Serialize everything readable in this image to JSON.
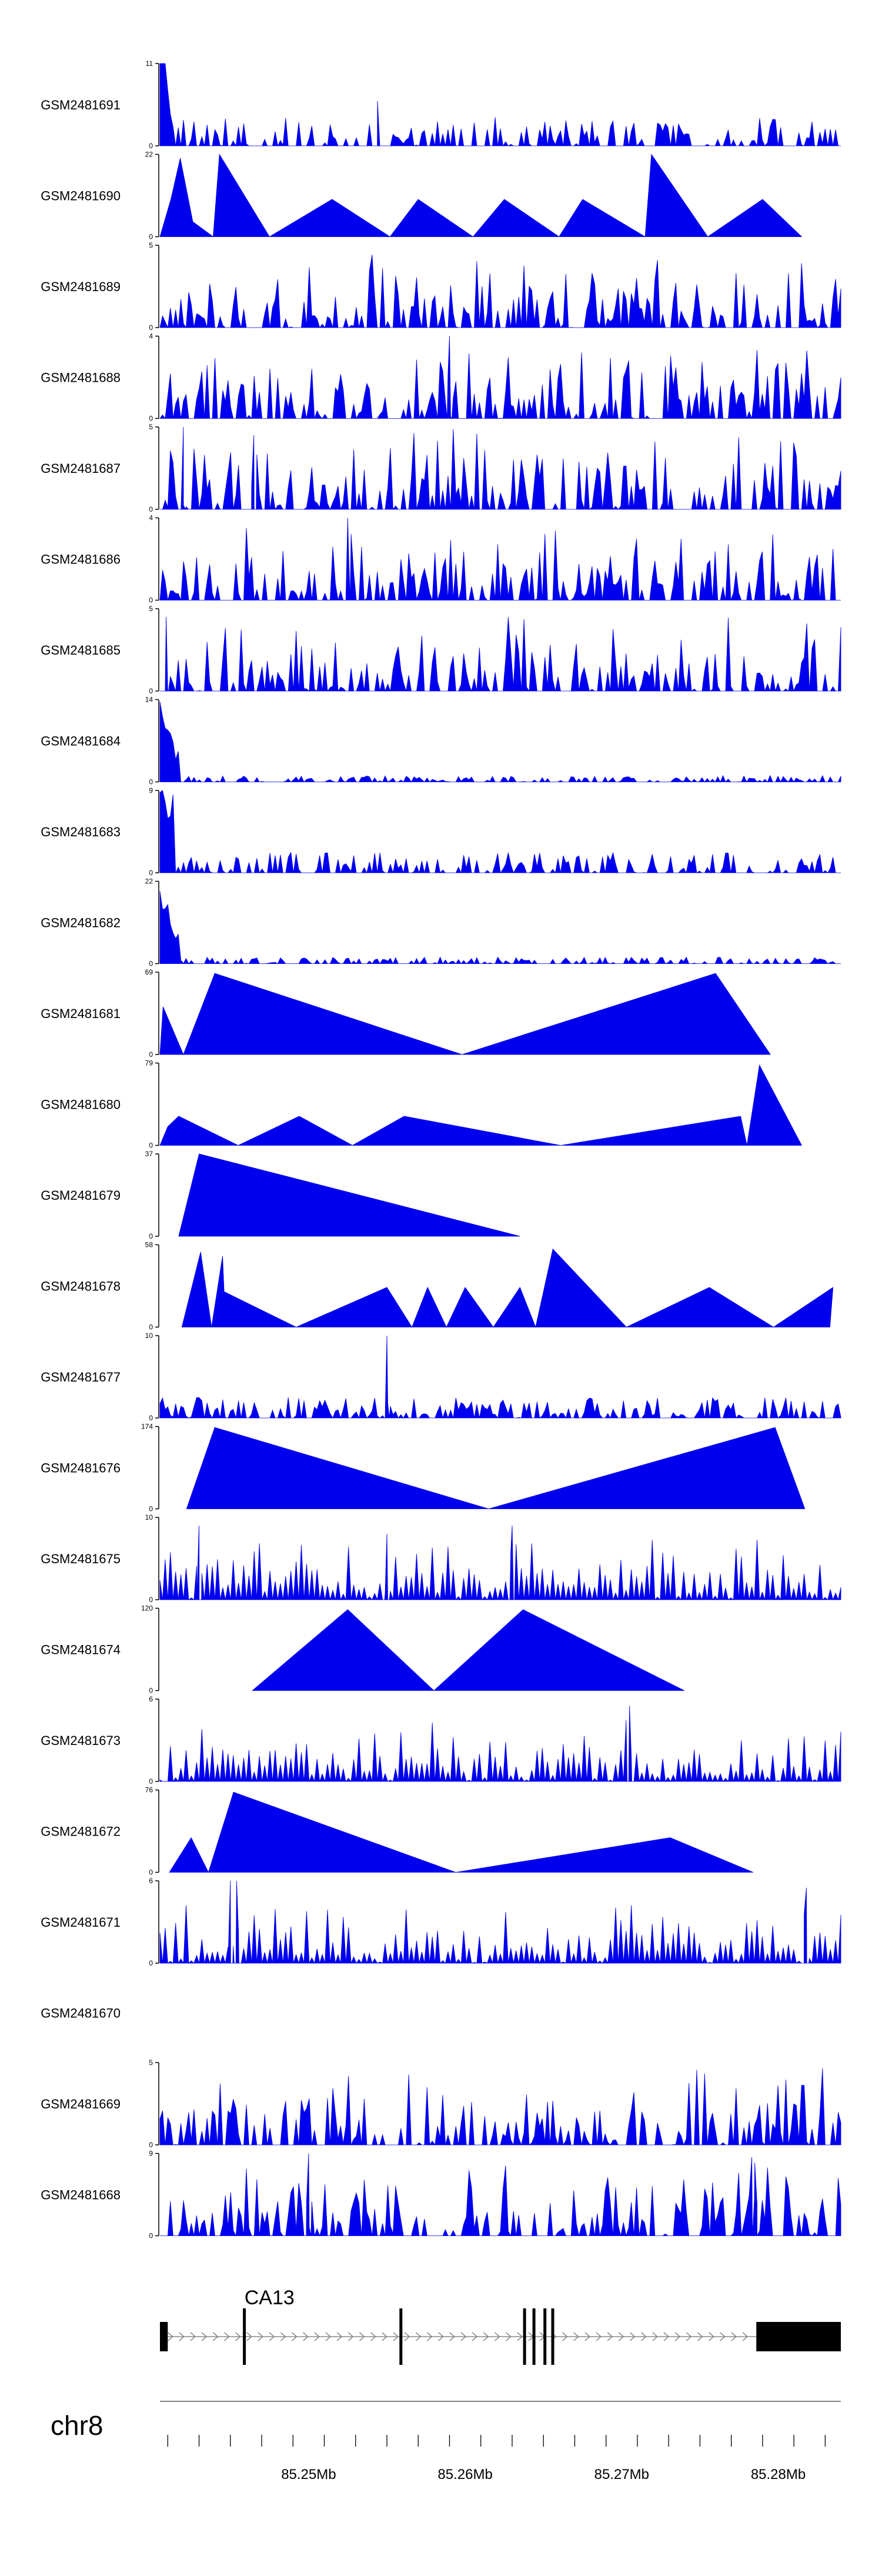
{
  "colors": {
    "signal": "#0000ee",
    "axis": "#000000",
    "gene": "#000000",
    "intron_arrow": "#888888",
    "ideogram_line": "#555555"
  },
  "chart_data": {
    "type": "area",
    "title": "",
    "genome_range": {
      "chromosome": "chr8",
      "start": 85240500,
      "end": 85284000
    },
    "tracks": [
      {
        "name": "GSM2481691",
        "ymax": 11,
        "pattern": "noisy_decay",
        "seed": 3,
        "peaks": [
          [
            85254400,
            6
          ]
        ]
      },
      {
        "name": "GSM2481690",
        "ymax": 22,
        "pattern": "triangles",
        "seed": 5,
        "points": [
          [
            85240500,
            0
          ],
          [
            85241200,
            10
          ],
          [
            85241800,
            21
          ],
          [
            85242600,
            4
          ],
          [
            85243900,
            0
          ],
          [
            85244300,
            22
          ],
          [
            85247500,
            0
          ],
          [
            85251500,
            10
          ],
          [
            85255200,
            0
          ],
          [
            85257000,
            10
          ],
          [
            85260500,
            0
          ],
          [
            85262500,
            10
          ],
          [
            85266000,
            0
          ],
          [
            85267500,
            10
          ],
          [
            85271500,
            0
          ],
          [
            85271900,
            22
          ],
          [
            85275500,
            0
          ],
          [
            85279000,
            10
          ],
          [
            85281500,
            0
          ]
        ]
      },
      {
        "name": "GSM2481689",
        "ymax": 5,
        "pattern": "noisy",
        "seed": 7
      },
      {
        "name": "GSM2481688",
        "ymax": 4,
        "pattern": "noisy",
        "seed": 11,
        "peaks": [
          [
            85259000,
            4
          ]
        ]
      },
      {
        "name": "GSM2481687",
        "ymax": 5,
        "pattern": "noisy",
        "seed": 13,
        "peaks": [
          [
            85242000,
            5
          ],
          [
            85246500,
            4.5
          ]
        ]
      },
      {
        "name": "GSM2481686",
        "ymax": 4,
        "pattern": "noisy",
        "seed": 17,
        "peaks": [
          [
            85252500,
            4
          ]
        ]
      },
      {
        "name": "GSM2481685",
        "ymax": 5,
        "pattern": "noisy",
        "seed": 19,
        "peaks": [
          [
            85240900,
            4.5
          ]
        ]
      },
      {
        "name": "GSM2481684",
        "ymax": 14,
        "pattern": "spike_start",
        "seed": 23
      },
      {
        "name": "GSM2481683",
        "ymax": 9,
        "pattern": "spike_start_mod",
        "seed": 29
      },
      {
        "name": "GSM2481682",
        "ymax": 22,
        "pattern": "spike_start",
        "seed": 31
      },
      {
        "name": "GSM2481681",
        "ymax": 69,
        "pattern": "triangles",
        "seed": 37,
        "points": [
          [
            85240500,
            0
          ],
          [
            85240700,
            40
          ],
          [
            85242000,
            0
          ],
          [
            85244000,
            68
          ],
          [
            85259800,
            0
          ],
          [
            85276000,
            68
          ],
          [
            85279500,
            0
          ]
        ]
      },
      {
        "name": "GSM2481680",
        "ymax": 79,
        "pattern": "triangles",
        "seed": 41,
        "points": [
          [
            85240500,
            0
          ],
          [
            85241000,
            18
          ],
          [
            85241700,
            28
          ],
          [
            85245500,
            0
          ],
          [
            85249400,
            28
          ],
          [
            85252800,
            0
          ],
          [
            85256100,
            28
          ],
          [
            85266100,
            0
          ],
          [
            85277600,
            28
          ],
          [
            85278000,
            0
          ],
          [
            85278800,
            77
          ],
          [
            85281500,
            0
          ]
        ]
      },
      {
        "name": "GSM2481679",
        "ymax": 37,
        "pattern": "triangles",
        "seed": 43,
        "points": [
          [
            85241700,
            0
          ],
          [
            85243000,
            37
          ],
          [
            85263500,
            0
          ]
        ]
      },
      {
        "name": "GSM2481678",
        "ymax": 58,
        "pattern": "triangles",
        "seed": 47,
        "points": [
          [
            85241900,
            0
          ],
          [
            85243100,
            53
          ],
          [
            85243800,
            0
          ],
          [
            85244500,
            50
          ],
          [
            85244600,
            25
          ],
          [
            85249200,
            0
          ],
          [
            85255000,
            28
          ],
          [
            85256600,
            0
          ],
          [
            85257600,
            28
          ],
          [
            85258800,
            0
          ],
          [
            85260000,
            28
          ],
          [
            85261800,
            0
          ],
          [
            85263500,
            28
          ],
          [
            85264500,
            0
          ],
          [
            85265600,
            55
          ],
          [
            85270300,
            0
          ],
          [
            85275600,
            28
          ],
          [
            85279700,
            0
          ],
          [
            85283500,
            28
          ],
          [
            85283300,
            0
          ]
        ]
      },
      {
        "name": "GSM2481677",
        "ymax": 10,
        "pattern": "noisy_flat",
        "seed": 53,
        "peaks": [
          [
            85255000,
            10
          ]
        ]
      },
      {
        "name": "GSM2481676",
        "ymax": 174,
        "pattern": "triangles",
        "seed": 59,
        "points": [
          [
            85242200,
            0
          ],
          [
            85244000,
            172
          ],
          [
            85261500,
            0
          ],
          [
            85279800,
            172
          ],
          [
            85281700,
            0
          ]
        ]
      },
      {
        "name": "GSM2481675",
        "ymax": 10,
        "pattern": "noisy_tri",
        "seed": 61,
        "peaks": [
          [
            85243000,
            9
          ],
          [
            85255000,
            8
          ],
          [
            85263000,
            9
          ]
        ]
      },
      {
        "name": "GSM2481674",
        "ymax": 120,
        "pattern": "triangles",
        "seed": 67,
        "points": [
          [
            85246400,
            0
          ],
          [
            85252500,
            118
          ],
          [
            85258000,
            0
          ],
          [
            85263700,
            118
          ],
          [
            85274000,
            0
          ]
        ]
      },
      {
        "name": "GSM2481673",
        "ymax": 6,
        "pattern": "noisy_tri",
        "seed": 71,
        "peaks": [
          [
            85270500,
            5.5
          ]
        ]
      },
      {
        "name": "GSM2481672",
        "ymax": 76,
        "pattern": "triangles",
        "seed": 73,
        "points": [
          [
            85241100,
            0
          ],
          [
            85242500,
            32
          ],
          [
            85243600,
            0
          ],
          [
            85245200,
            74
          ],
          [
            85259400,
            0
          ],
          [
            85273100,
            32
          ],
          [
            85278400,
            0
          ]
        ]
      },
      {
        "name": "GSM2481671",
        "ymax": 6,
        "pattern": "noisy_tri",
        "seed": 79,
        "peaks": [
          [
            85245000,
            6
          ],
          [
            85245400,
            6
          ],
          [
            85281800,
            5.5
          ]
        ]
      },
      {
        "name": "GSM2481670",
        "ymax": null,
        "pattern": "empty",
        "seed": 83
      },
      {
        "name": "GSM2481669",
        "ymax": 5,
        "pattern": "noisy",
        "seed": 89
      },
      {
        "name": "GSM2481668",
        "ymax": 9,
        "pattern": "noisy",
        "seed": 97,
        "peaks": [
          [
            85250000,
            9
          ],
          [
            85278500,
            8
          ]
        ]
      }
    ],
    "gene": {
      "name": "CA13",
      "start": 85240500,
      "end": 85284000,
      "exons": [
        [
          85240500,
          85241000
        ],
        [
          85245800,
          85245950
        ],
        [
          85255800,
          85255950
        ],
        [
          85263700,
          85263800
        ],
        [
          85264300,
          85264400
        ],
        [
          85265000,
          85265100
        ],
        [
          85265500,
          85265650
        ],
        [
          85278600,
          85284000
        ]
      ]
    },
    "chromosome": "chr8",
    "x_ticks": [
      "85.25Mb",
      "85.26Mb",
      "85.27Mb",
      "85.28Mb"
    ],
    "x_tick_values": [
      85250000,
      85260000,
      85270000,
      85280000
    ]
  }
}
